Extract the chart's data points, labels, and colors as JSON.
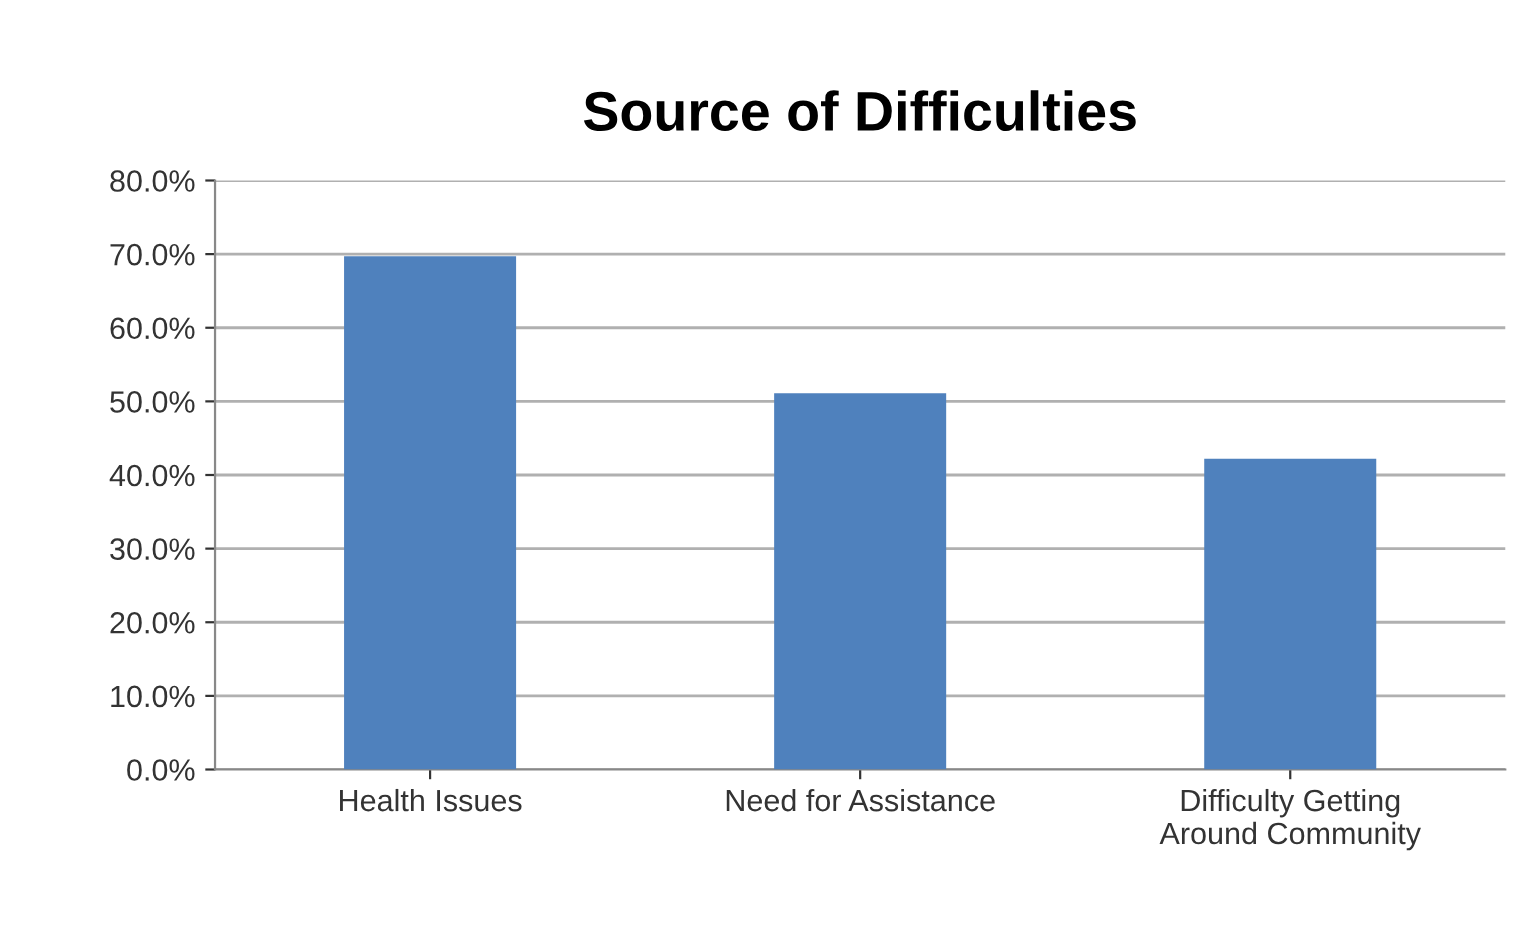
{
  "chart_data": {
    "type": "bar",
    "title": "Source of Difficulties",
    "categories": [
      "Health Issues",
      "Need for Assistance",
      "Difficulty Getting\nAround Community"
    ],
    "values": [
      69.7,
      51.1,
      42.2
    ],
    "color": "#4f81bd",
    "ylim": [
      0,
      80
    ],
    "yticks": [
      {
        "value": 0,
        "label": "0.0%"
      },
      {
        "value": 10,
        "label": "10.0%"
      },
      {
        "value": 20,
        "label": "20.0%"
      },
      {
        "value": 30,
        "label": "30.0%"
      },
      {
        "value": 40,
        "label": "40.0%"
      },
      {
        "value": 50,
        "label": "50.0%"
      },
      {
        "value": 60,
        "label": "60.0%"
      },
      {
        "value": 70,
        "label": "70.0%"
      },
      {
        "value": 80,
        "label": "80.0%"
      }
    ],
    "grid": "y"
  }
}
